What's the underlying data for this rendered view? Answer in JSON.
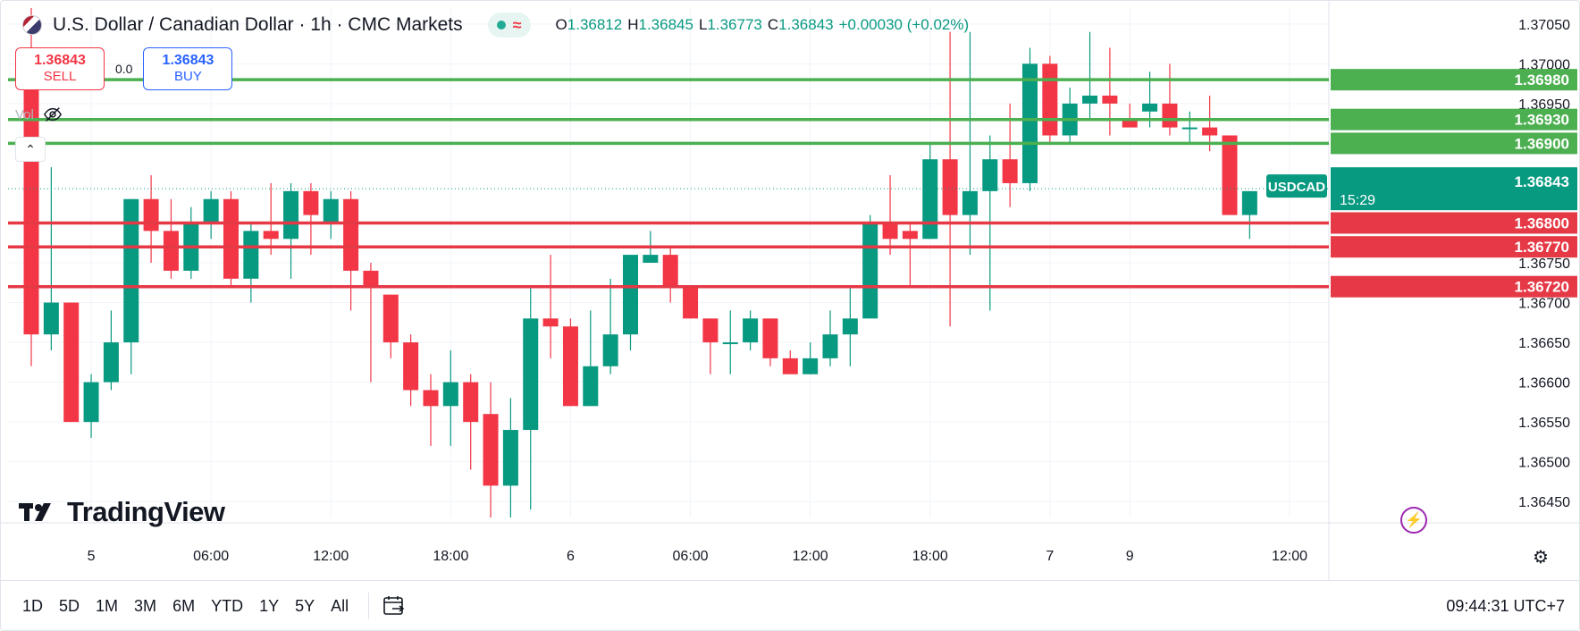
{
  "header": {
    "title": "U.S. Dollar / Canadian Dollar · 1h · CMC Markets",
    "approx_symbol": "≈",
    "ohlc": [
      {
        "k": "O",
        "v": "1.36812"
      },
      {
        "k": "H",
        "v": "1.36845"
      },
      {
        "k": "L",
        "v": "1.36773"
      },
      {
        "k": "C",
        "v": "1.36843"
      },
      {
        "k": "",
        "v": "+0.00030 (+0.02%)"
      }
    ]
  },
  "trade": {
    "sell_price": "1.36843",
    "sell_label": "SELL",
    "spread": "0.0",
    "buy_price": "1.36843",
    "buy_label": "BUY"
  },
  "volume_label": "Vol",
  "logo_text": "TradingView",
  "bottom": {
    "ranges": [
      "1D",
      "5D",
      "1M",
      "3M",
      "6M",
      "YTD",
      "1Y",
      "5Y",
      "All"
    ],
    "clock": "09:44:31 UTC+7"
  },
  "colors": {
    "up": "#089981",
    "down": "#f23645",
    "resistance": "#4caf50",
    "support": "#e53946",
    "grid": "#f0f3fa"
  },
  "chart_data": {
    "type": "candlestick",
    "symbol": "USDCAD",
    "ylim": [
      1.3643,
      1.3707
    ],
    "y_ticks": [
      "1.37050",
      "1.37000",
      "1.36950",
      "1.36750",
      "1.36700",
      "1.36650",
      "1.36600",
      "1.36550",
      "1.36500",
      "1.36450"
    ],
    "x_ticks": [
      {
        "i": 3,
        "label": "5"
      },
      {
        "i": 9,
        "label": "06:00"
      },
      {
        "i": 15,
        "label": "12:00"
      },
      {
        "i": 21,
        "label": "18:00"
      },
      {
        "i": 27,
        "label": "6"
      },
      {
        "i": 33,
        "label": "06:00"
      },
      {
        "i": 39,
        "label": "12:00"
      },
      {
        "i": 45,
        "label": "18:00"
      },
      {
        "i": 51,
        "label": "7"
      },
      {
        "i": 55,
        "label": "9"
      },
      {
        "i": 63,
        "label": "12:00"
      }
    ],
    "candles": [
      {
        "o": 1.3702,
        "h": 1.3707,
        "l": 1.3662,
        "c": 1.3666
      },
      {
        "o": 1.3666,
        "h": 1.3687,
        "l": 1.3664,
        "c": 1.367
      },
      {
        "o": 1.367,
        "h": 1.367,
        "l": 1.3655,
        "c": 1.3655
      },
      {
        "o": 1.3655,
        "h": 1.3661,
        "l": 1.3653,
        "c": 1.366
      },
      {
        "o": 1.366,
        "h": 1.3669,
        "l": 1.3659,
        "c": 1.3665
      },
      {
        "o": 1.3665,
        "h": 1.3683,
        "l": 1.3661,
        "c": 1.3683
      },
      {
        "o": 1.3683,
        "h": 1.3686,
        "l": 1.3675,
        "c": 1.3679
      },
      {
        "o": 1.3679,
        "h": 1.3683,
        "l": 1.3673,
        "c": 1.3674
      },
      {
        "o": 1.3674,
        "h": 1.3682,
        "l": 1.3673,
        "c": 1.368
      },
      {
        "o": 1.368,
        "h": 1.3684,
        "l": 1.3678,
        "c": 1.3683
      },
      {
        "o": 1.3683,
        "h": 1.3684,
        "l": 1.3672,
        "c": 1.3673
      },
      {
        "o": 1.3673,
        "h": 1.368,
        "l": 1.367,
        "c": 1.3679
      },
      {
        "o": 1.3679,
        "h": 1.3685,
        "l": 1.3676,
        "c": 1.3678
      },
      {
        "o": 1.3678,
        "h": 1.3685,
        "l": 1.3673,
        "c": 1.3684
      },
      {
        "o": 1.3684,
        "h": 1.3685,
        "l": 1.3676,
        "c": 1.3681
      },
      {
        "o": 1.368,
        "h": 1.3684,
        "l": 1.3678,
        "c": 1.3683
      },
      {
        "o": 1.3683,
        "h": 1.3684,
        "l": 1.3669,
        "c": 1.3674
      },
      {
        "o": 1.3674,
        "h": 1.3675,
        "l": 1.366,
        "c": 1.3672
      },
      {
        "o": 1.3671,
        "h": 1.3671,
        "l": 1.3663,
        "c": 1.3665
      },
      {
        "o": 1.3665,
        "h": 1.3666,
        "l": 1.3657,
        "c": 1.3659
      },
      {
        "o": 1.3659,
        "h": 1.3661,
        "l": 1.3652,
        "c": 1.3657
      },
      {
        "o": 1.3657,
        "h": 1.3664,
        "l": 1.3652,
        "c": 1.366
      },
      {
        "o": 1.366,
        "h": 1.3661,
        "l": 1.3649,
        "c": 1.3655
      },
      {
        "o": 1.3656,
        "h": 1.366,
        "l": 1.3643,
        "c": 1.3647
      },
      {
        "o": 1.3647,
        "h": 1.3658,
        "l": 1.3643,
        "c": 1.3654
      },
      {
        "o": 1.3654,
        "h": 1.3672,
        "l": 1.3644,
        "c": 1.3668
      },
      {
        "o": 1.3668,
        "h": 1.3676,
        "l": 1.3663,
        "c": 1.3667
      },
      {
        "o": 1.3667,
        "h": 1.3668,
        "l": 1.3657,
        "c": 1.3657
      },
      {
        "o": 1.3657,
        "h": 1.3669,
        "l": 1.3657,
        "c": 1.3662
      },
      {
        "o": 1.3662,
        "h": 1.3673,
        "l": 1.3661,
        "c": 1.3666
      },
      {
        "o": 1.3666,
        "h": 1.3676,
        "l": 1.3664,
        "c": 1.3676
      },
      {
        "o": 1.3675,
        "h": 1.3679,
        "l": 1.3675,
        "c": 1.3676
      },
      {
        "o": 1.3676,
        "h": 1.3677,
        "l": 1.367,
        "c": 1.3672
      },
      {
        "o": 1.3672,
        "h": 1.3672,
        "l": 1.3668,
        "c": 1.3668
      },
      {
        "o": 1.3668,
        "h": 1.3668,
        "l": 1.3661,
        "c": 1.3665
      },
      {
        "o": 1.3665,
        "h": 1.3669,
        "l": 1.3661,
        "c": 1.3665
      },
      {
        "o": 1.3665,
        "h": 1.3669,
        "l": 1.3664,
        "c": 1.3668
      },
      {
        "o": 1.3668,
        "h": 1.3668,
        "l": 1.3662,
        "c": 1.3663
      },
      {
        "o": 1.3663,
        "h": 1.3664,
        "l": 1.3661,
        "c": 1.3661
      },
      {
        "o": 1.3661,
        "h": 1.3665,
        "l": 1.3661,
        "c": 1.3663
      },
      {
        "o": 1.3663,
        "h": 1.3669,
        "l": 1.3662,
        "c": 1.3666
      },
      {
        "o": 1.3666,
        "h": 1.3672,
        "l": 1.3662,
        "c": 1.3668
      },
      {
        "o": 1.3668,
        "h": 1.3681,
        "l": 1.3668,
        "c": 1.368
      },
      {
        "o": 1.368,
        "h": 1.3686,
        "l": 1.3676,
        "c": 1.3678
      },
      {
        "o": 1.3679,
        "h": 1.368,
        "l": 1.3672,
        "c": 1.3678
      },
      {
        "o": 1.3678,
        "h": 1.369,
        "l": 1.3678,
        "c": 1.3688
      },
      {
        "o": 1.3688,
        "h": 1.3704,
        "l": 1.3667,
        "c": 1.3681
      },
      {
        "o": 1.3681,
        "h": 1.3704,
        "l": 1.3676,
        "c": 1.3684
      },
      {
        "o": 1.3684,
        "h": 1.3691,
        "l": 1.3669,
        "c": 1.3688
      },
      {
        "o": 1.3688,
        "h": 1.3695,
        "l": 1.3682,
        "c": 1.3685
      },
      {
        "o": 1.3685,
        "h": 1.3702,
        "l": 1.3684,
        "c": 1.37
      },
      {
        "o": 1.37,
        "h": 1.3701,
        "l": 1.369,
        "c": 1.3691
      },
      {
        "o": 1.3691,
        "h": 1.3697,
        "l": 1.369,
        "c": 1.3695
      },
      {
        "o": 1.3695,
        "h": 1.3704,
        "l": 1.3693,
        "c": 1.3696
      },
      {
        "o": 1.3696,
        "h": 1.3702,
        "l": 1.3691,
        "c": 1.3695
      },
      {
        "o": 1.3693,
        "h": 1.3695,
        "l": 1.3692,
        "c": 1.3692
      },
      {
        "o": 1.3694,
        "h": 1.3699,
        "l": 1.3692,
        "c": 1.3695
      },
      {
        "o": 1.3695,
        "h": 1.37,
        "l": 1.3691,
        "c": 1.3692
      },
      {
        "o": 1.3692,
        "h": 1.3694,
        "l": 1.369,
        "c": 1.3692
      },
      {
        "o": 1.3692,
        "h": 1.3696,
        "l": 1.3689,
        "c": 1.3691
      },
      {
        "o": 1.3691,
        "h": 1.3691,
        "l": 1.3681,
        "c": 1.3681
      },
      {
        "o": 1.3681,
        "h": 1.3684,
        "l": 1.3678,
        "c": 1.3684
      }
    ],
    "levels": [
      {
        "price": 1.3698,
        "label": "1.36980",
        "kind": "resistance"
      },
      {
        "price": 1.3693,
        "label": "1.36930",
        "kind": "resistance"
      },
      {
        "price": 1.369,
        "label": "1.36900",
        "kind": "resistance"
      },
      {
        "price": 1.368,
        "label": "1.36800",
        "kind": "support"
      },
      {
        "price": 1.3677,
        "label": "1.36770",
        "kind": "support"
      },
      {
        "price": 1.3672,
        "label": "1.36720",
        "kind": "support"
      }
    ],
    "current": {
      "price": 1.36843,
      "label": "USDCAD",
      "value": "1.36843",
      "countdown": "15:29"
    }
  }
}
